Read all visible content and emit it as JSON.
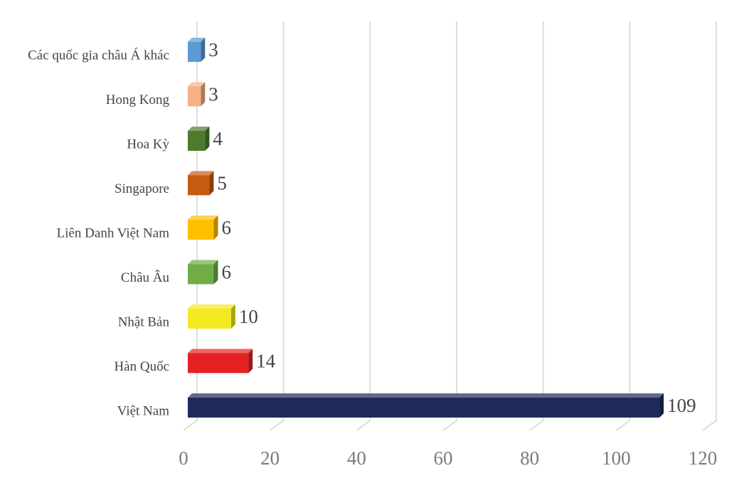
{
  "chart_data": {
    "type": "bar",
    "orientation": "horizontal",
    "categories": [
      "Các quốc gia châu Á khác",
      "Hong Kong",
      "Hoa Kỳ",
      "Singapore",
      "Liên Danh Việt Nam",
      "Châu Âu",
      "Nhật Bản",
      "Hàn Quốc",
      "Việt Nam"
    ],
    "values": [
      3,
      3,
      4,
      5,
      6,
      6,
      10,
      14,
      109
    ],
    "colors": [
      "#5b9bd5",
      "#f4b183",
      "#4e7a2e",
      "#c55a11",
      "#ffc000",
      "#70ad47",
      "#f2ea1f",
      "#e52222",
      "#1f2a5c"
    ],
    "xlim": [
      0,
      120
    ],
    "xticks": [
      0,
      20,
      40,
      60,
      80,
      100,
      120
    ],
    "grid": true
  }
}
